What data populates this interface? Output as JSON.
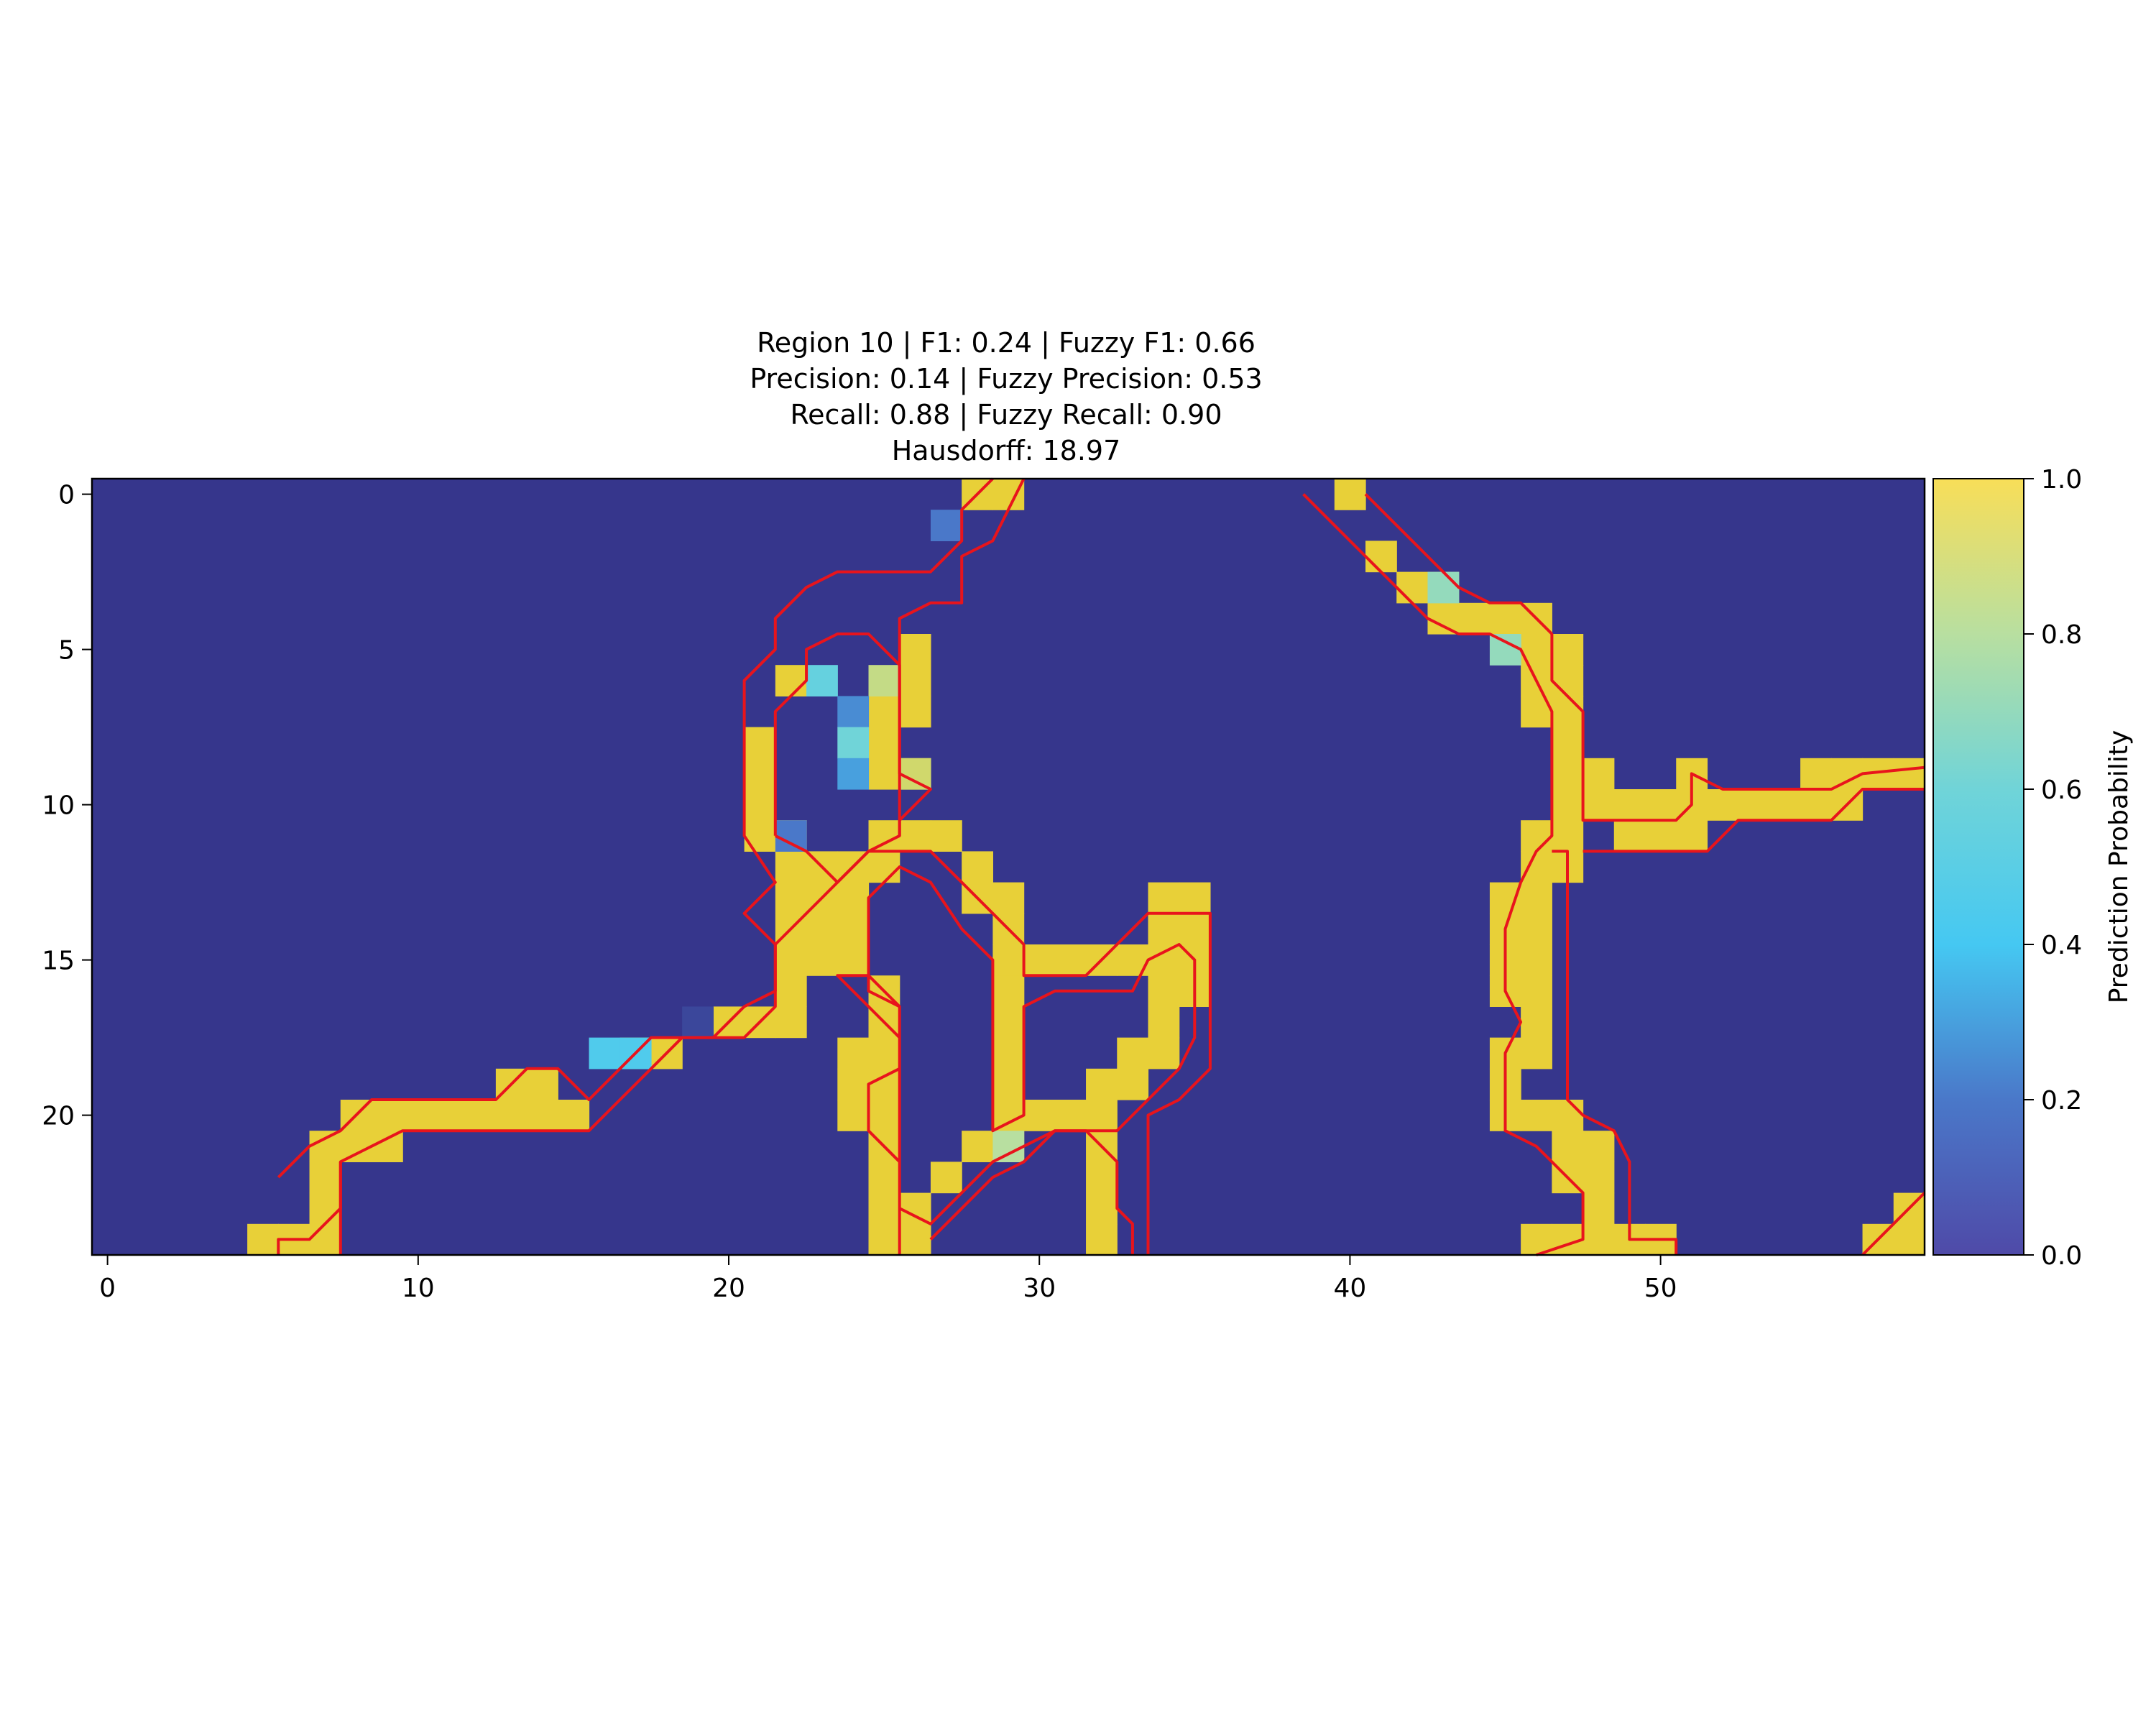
{
  "chart_data": {
    "type": "heatmap",
    "title_lines": [
      "Region 10 | F1: 0.24 | Fuzzy F1: 0.66",
      "Precision: 0.14 | Fuzzy Precision: 0.53",
      "Recall: 0.88 | Fuzzy Recall: 0.90",
      "Hausdorff: 18.97"
    ],
    "grid": {
      "cols": 59,
      "rows": 25
    },
    "xlim": [
      -0.5,
      58.5
    ],
    "ylim": [
      24.5,
      -0.5
    ],
    "x_ticks": [
      0,
      10,
      20,
      30,
      40,
      50
    ],
    "y_ticks": [
      0,
      5,
      10,
      15,
      20
    ],
    "colorbar": {
      "label": "Prediction Probability",
      "range": [
        0,
        1
      ],
      "ticks": [
        "0.0",
        "0.2",
        "0.4",
        "0.6",
        "0.8",
        "1.0"
      ]
    },
    "background_value": 0.0,
    "high_cells": [
      [
        0,
        28
      ],
      [
        0,
        29
      ],
      [
        0,
        40
      ],
      [
        2,
        41
      ],
      [
        3,
        42
      ],
      [
        3,
        43
      ],
      [
        4,
        43
      ],
      [
        4,
        44
      ],
      [
        4,
        45
      ],
      [
        4,
        46
      ],
      [
        5,
        46
      ],
      [
        5,
        47
      ],
      [
        6,
        46
      ],
      [
        6,
        47
      ],
      [
        7,
        46
      ],
      [
        7,
        47
      ],
      [
        8,
        47
      ],
      [
        9,
        47
      ],
      [
        10,
        47
      ],
      [
        11,
        46
      ],
      [
        11,
        47
      ],
      [
        12,
        46
      ],
      [
        12,
        47
      ],
      [
        13,
        45
      ],
      [
        13,
        46
      ],
      [
        14,
        45
      ],
      [
        14,
        46
      ],
      [
        15,
        45
      ],
      [
        15,
        46
      ],
      [
        16,
        45
      ],
      [
        16,
        46
      ],
      [
        17,
        46
      ],
      [
        18,
        45
      ],
      [
        18,
        46
      ],
      [
        19,
        45
      ],
      [
        20,
        45
      ],
      [
        20,
        46
      ],
      [
        20,
        47
      ],
      [
        21,
        47
      ],
      [
        21,
        48
      ],
      [
        22,
        47
      ],
      [
        22,
        48
      ],
      [
        23,
        48
      ],
      [
        24,
        46
      ],
      [
        24,
        47
      ],
      [
        24,
        48
      ],
      [
        24,
        49
      ],
      [
        24,
        50
      ],
      [
        9,
        48
      ],
      [
        9,
        51
      ],
      [
        9,
        55
      ],
      [
        9,
        56
      ],
      [
        9,
        57
      ],
      [
        9,
        58
      ],
      [
        10,
        48
      ],
      [
        10,
        49
      ],
      [
        10,
        50
      ],
      [
        10,
        51
      ],
      [
        10,
        52
      ],
      [
        10,
        53
      ],
      [
        10,
        54
      ],
      [
        10,
        55
      ],
      [
        10,
        56
      ],
      [
        11,
        49
      ],
      [
        11,
        50
      ],
      [
        11,
        51
      ],
      [
        5,
        26
      ],
      [
        6,
        22
      ],
      [
        6,
        26
      ],
      [
        7,
        25
      ],
      [
        7,
        26
      ],
      [
        8,
        21
      ],
      [
        8,
        25
      ],
      [
        9,
        21
      ],
      [
        9,
        25
      ],
      [
        9,
        26
      ],
      [
        10,
        21
      ],
      [
        11,
        21
      ],
      [
        11,
        22
      ],
      [
        11,
        25
      ],
      [
        11,
        26
      ],
      [
        11,
        27
      ],
      [
        12,
        22
      ],
      [
        12,
        23
      ],
      [
        12,
        24
      ],
      [
        12,
        25
      ],
      [
        12,
        28
      ],
      [
        13,
        22
      ],
      [
        13,
        23
      ],
      [
        13,
        24
      ],
      [
        13,
        28
      ],
      [
        13,
        29
      ],
      [
        14,
        22
      ],
      [
        14,
        23
      ],
      [
        14,
        24
      ],
      [
        14,
        29
      ],
      [
        15,
        22
      ],
      [
        15,
        23
      ],
      [
        15,
        24
      ],
      [
        15,
        29
      ],
      [
        15,
        30
      ],
      [
        15,
        31
      ],
      [
        15,
        32
      ],
      [
        15,
        33
      ],
      [
        16,
        22
      ],
      [
        16,
        25
      ],
      [
        16,
        29
      ],
      [
        17,
        20
      ],
      [
        17,
        21
      ],
      [
        17,
        22
      ],
      [
        17,
        25
      ],
      [
        18,
        17
      ],
      [
        18,
        18
      ],
      [
        18,
        24
      ],
      [
        18,
        25
      ],
      [
        19,
        13
      ],
      [
        19,
        14
      ],
      [
        19,
        24
      ],
      [
        20,
        8
      ],
      [
        20,
        9
      ],
      [
        20,
        10
      ],
      [
        20,
        11
      ],
      [
        20,
        12
      ],
      [
        20,
        13
      ],
      [
        20,
        14
      ],
      [
        20,
        15
      ],
      [
        20,
        24
      ],
      [
        21,
        7
      ],
      [
        21,
        8
      ],
      [
        21,
        9
      ],
      [
        22,
        7
      ],
      [
        23,
        7
      ],
      [
        24,
        5
      ],
      [
        24,
        6
      ],
      [
        24,
        7
      ],
      [
        13,
        34
      ],
      [
        13,
        35
      ],
      [
        14,
        34
      ],
      [
        14,
        35
      ],
      [
        15,
        34
      ],
      [
        15,
        35
      ],
      [
        16,
        34
      ],
      [
        16,
        35
      ],
      [
        17,
        34
      ],
      [
        18,
        33
      ],
      [
        18,
        34
      ],
      [
        19,
        32
      ],
      [
        19,
        33
      ],
      [
        20,
        29
      ],
      [
        20,
        30
      ],
      [
        20,
        31
      ],
      [
        20,
        32
      ],
      [
        16,
        29
      ],
      [
        17,
        29
      ],
      [
        18,
        29
      ],
      [
        19,
        29
      ],
      [
        21,
        29
      ],
      [
        21,
        32
      ],
      [
        22,
        32
      ],
      [
        23,
        32
      ],
      [
        24,
        32
      ],
      [
        17,
        25
      ],
      [
        18,
        25
      ],
      [
        19,
        25
      ],
      [
        20,
        25
      ],
      [
        21,
        25
      ],
      [
        22,
        25
      ],
      [
        23,
        25
      ],
      [
        24,
        25
      ],
      [
        24,
        26
      ],
      [
        23,
        26
      ],
      [
        22,
        27
      ],
      [
        21,
        28
      ],
      [
        24,
        57
      ],
      [
        24,
        58
      ],
      [
        23,
        58
      ]
    ],
    "partial_cells": [
      [
        1,
        27,
        0.2
      ],
      [
        3,
        43,
        0.7
      ],
      [
        5,
        45,
        0.7
      ],
      [
        6,
        23,
        0.55
      ],
      [
        6,
        25,
        0.85
      ],
      [
        7,
        24,
        0.25
      ],
      [
        8,
        24,
        0.6
      ],
      [
        9,
        24,
        0.3
      ],
      [
        11,
        22,
        0.2
      ],
      [
        9,
        26,
        0.9
      ],
      [
        17,
        19,
        0.05
      ],
      [
        18,
        16,
        0.45
      ],
      [
        18,
        17,
        0.45
      ],
      [
        21,
        29,
        0.8
      ]
    ],
    "outlines": [
      [
        [
          5.5,
          24.5
        ],
        [
          5.5,
          24
        ],
        [
          6.5,
          24
        ],
        [
          7.5,
          23
        ],
        [
          7.5,
          21.5
        ],
        [
          8.5,
          21
        ],
        [
          9.5,
          20.5
        ],
        [
          10.5,
          20.5
        ],
        [
          14.5,
          20.5
        ],
        [
          15.5,
          20.5
        ],
        [
          16.5,
          19.5
        ],
        [
          17.5,
          18.5
        ],
        [
          18.5,
          17.5
        ],
        [
          20.5,
          17.5
        ],
        [
          21.5,
          16.5
        ],
        [
          21.5,
          14.5
        ],
        [
          22.5,
          13.5
        ],
        [
          23.5,
          12.5
        ],
        [
          24.5,
          11.5
        ],
        [
          26.5,
          11.5
        ],
        [
          27.5,
          12.5
        ],
        [
          28.5,
          13.5
        ],
        [
          29.5,
          14.5
        ],
        [
          29.5,
          15.5
        ],
        [
          31.5,
          15.5
        ],
        [
          32.5,
          14.5
        ],
        [
          33.5,
          13.5
        ],
        [
          35.5,
          13.5
        ],
        [
          35.5,
          18.5
        ],
        [
          34.5,
          19.5
        ],
        [
          33.5,
          20
        ],
        [
          33.5,
          24.5
        ]
      ],
      [
        [
          7.5,
          24.5
        ],
        [
          7.5,
          21.5
        ]
      ],
      [
        [
          5.5,
          22
        ],
        [
          6.5,
          21
        ],
        [
          7.5,
          20.5
        ],
        [
          8.5,
          19.5
        ],
        [
          12.5,
          19.5
        ],
        [
          13.5,
          18.5
        ],
        [
          14.5,
          18.5
        ],
        [
          15.5,
          19.5
        ],
        [
          16.5,
          18.5
        ],
        [
          17.5,
          17.5
        ],
        [
          19.5,
          17.5
        ],
        [
          20.5,
          16.5
        ],
        [
          21.5,
          16
        ],
        [
          21.5,
          14.5
        ],
        [
          20.5,
          13.5
        ],
        [
          21.5,
          12.5
        ],
        [
          20.5,
          11
        ],
        [
          20.5,
          6
        ],
        [
          21.5,
          5
        ],
        [
          21.5,
          4
        ],
        [
          22.5,
          3
        ],
        [
          23.5,
          2.5
        ],
        [
          26.5,
          2.5
        ],
        [
          27.5,
          1.5
        ],
        [
          27.5,
          0.5
        ],
        [
          28.5,
          -0.5
        ]
      ],
      [
        [
          21.5,
          11
        ],
        [
          21.5,
          7
        ],
        [
          22.5,
          6
        ],
        [
          22.5,
          5
        ],
        [
          23.5,
          4.5
        ],
        [
          24.5,
          4.5
        ],
        [
          25.5,
          5.5
        ],
        [
          25.5,
          11
        ],
        [
          24.5,
          11.5
        ],
        [
          23.5,
          12.5
        ],
        [
          22.5,
          11.5
        ],
        [
          21.5,
          11
        ]
      ],
      [
        [
          29.5,
          -0.5
        ],
        [
          28.5,
          1.5
        ],
        [
          27.5,
          2
        ],
        [
          27.5,
          3.5
        ],
        [
          26.5,
          3.5
        ],
        [
          25.5,
          4
        ],
        [
          25.5,
          9
        ],
        [
          26.5,
          9.5
        ],
        [
          25.5,
          10.5
        ],
        [
          25.5,
          11
        ]
      ],
      [
        [
          25.5,
          24.5
        ],
        [
          25.5,
          16.5
        ],
        [
          24.5,
          15.5
        ],
        [
          23.5,
          15.5
        ],
        [
          24.5,
          16.5
        ],
        [
          25.5,
          17.5
        ],
        [
          25.5,
          18.5
        ],
        [
          24.5,
          19
        ],
        [
          24.5,
          20.5
        ],
        [
          25.5,
          21.5
        ],
        [
          25.5,
          23
        ],
        [
          26.5,
          23.5
        ],
        [
          27.5,
          22.5
        ],
        [
          28.5,
          21.5
        ],
        [
          29.5,
          21
        ],
        [
          30.5,
          20.5
        ],
        [
          31.5,
          20.5
        ],
        [
          32.5,
          21.5
        ],
        [
          32.5,
          23
        ],
        [
          33,
          23.5
        ],
        [
          33,
          24.5
        ]
      ],
      [
        [
          26.5,
          24
        ],
        [
          27.5,
          23
        ],
        [
          28.5,
          22
        ],
        [
          29.5,
          21.5
        ],
        [
          30.5,
          20.5
        ],
        [
          32.5,
          20.5
        ],
        [
          33.5,
          19.5
        ],
        [
          34.5,
          18.5
        ],
        [
          35,
          17.5
        ],
        [
          35,
          15
        ],
        [
          34.5,
          14.5
        ],
        [
          33.5,
          15
        ],
        [
          33,
          16
        ],
        [
          32.5,
          16
        ],
        [
          30.5,
          16
        ],
        [
          29.5,
          16.5
        ],
        [
          29.5,
          20
        ],
        [
          28.5,
          20.5
        ],
        [
          28.5,
          15
        ],
        [
          27.5,
          14
        ],
        [
          26.5,
          12.5
        ],
        [
          25.5,
          12
        ],
        [
          24.5,
          13
        ],
        [
          24.5,
          16
        ],
        [
          25.5,
          16.5
        ]
      ],
      [
        [
          38.5,
          0
        ],
        [
          39.5,
          1
        ],
        [
          40.5,
          2
        ],
        [
          41.5,
          3
        ],
        [
          42.5,
          4
        ],
        [
          43.5,
          4.5
        ],
        [
          44.5,
          4.5
        ],
        [
          45.5,
          5
        ],
        [
          46,
          6
        ],
        [
          46.5,
          7
        ],
        [
          46.5,
          11
        ],
        [
          46,
          11.5
        ],
        [
          45.5,
          12.5
        ],
        [
          45,
          14
        ],
        [
          45,
          16
        ],
        [
          45.5,
          17
        ],
        [
          45,
          18
        ],
        [
          45,
          20.5
        ],
        [
          46,
          21
        ],
        [
          46.5,
          21.5
        ],
        [
          47.5,
          22.5
        ],
        [
          47.5,
          24
        ],
        [
          46,
          24.5
        ]
      ],
      [
        [
          40.5,
          0
        ],
        [
          41.5,
          1
        ],
        [
          42.5,
          2
        ],
        [
          43.5,
          3
        ],
        [
          44.5,
          3.5
        ],
        [
          45.5,
          3.5
        ],
        [
          46.5,
          4.5
        ],
        [
          46.5,
          6
        ],
        [
          47.5,
          7
        ],
        [
          47.5,
          10.5
        ],
        [
          48,
          10.5
        ],
        [
          50.5,
          10.5
        ],
        [
          51,
          10
        ],
        [
          51,
          9
        ],
        [
          52,
          9.5
        ],
        [
          55.5,
          9.5
        ],
        [
          56.5,
          9
        ],
        [
          58.5,
          8.8
        ]
      ],
      [
        [
          46.5,
          11.5
        ],
        [
          47,
          11.5
        ],
        [
          47,
          18
        ],
        [
          47,
          19.5
        ],
        [
          47.5,
          20
        ],
        [
          48.5,
          20.5
        ],
        [
          49,
          21.5
        ],
        [
          49,
          24
        ],
        [
          50.5,
          24
        ],
        [
          50.5,
          24.5
        ]
      ],
      [
        [
          47.5,
          11.5
        ],
        [
          51.5,
          11.5
        ],
        [
          52.5,
          10.5
        ],
        [
          55.5,
          10.5
        ],
        [
          56.5,
          9.5
        ],
        [
          58.5,
          9.5
        ]
      ],
      [
        [
          56.5,
          24.5
        ],
        [
          57.5,
          23.5
        ],
        [
          58.5,
          22.5
        ]
      ]
    ]
  }
}
